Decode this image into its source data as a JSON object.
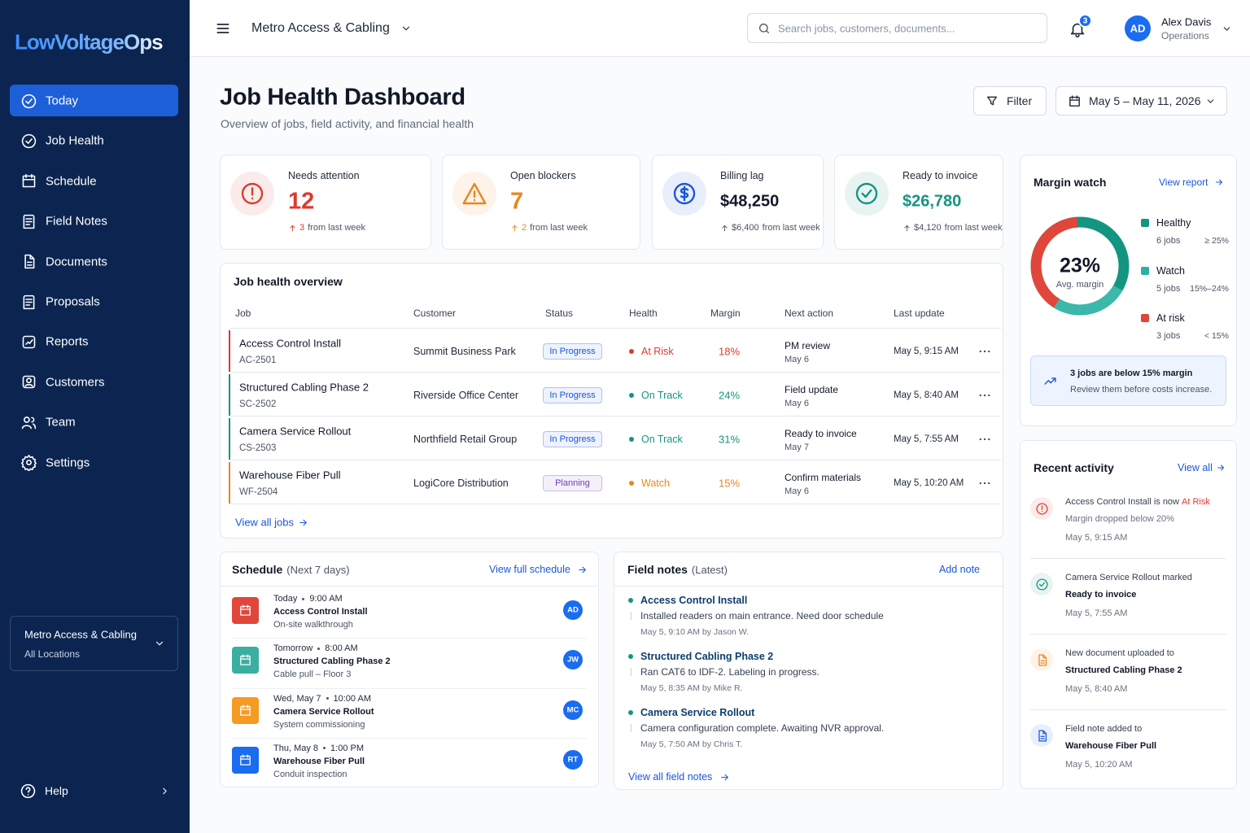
{
  "sidebar": {
    "brand": "LowVoltageOps",
    "nav": [
      "Today",
      "Job Health",
      "Schedule",
      "Field Notes",
      "Documents",
      "Proposals",
      "Reports",
      "Customers",
      "Team",
      "Settings"
    ],
    "org_switcher": {
      "name": "Metro Access & Cabling",
      "scope": "All Locations"
    },
    "help": "Help"
  },
  "topbar": {
    "org": "Metro Access & Cabling",
    "search_placeholder": "Search jobs, customers, documents...",
    "notifications": 3,
    "user": {
      "initials": "AD",
      "name": "Alex Davis",
      "role": "Operations"
    }
  },
  "header": {
    "title": "Job Health Dashboard",
    "subtitle": "Overview of jobs, field activity, and financial health",
    "filter": "Filter",
    "date_range": "May 5 – May 11, 2026"
  },
  "kpis": [
    {
      "label": "Needs attention",
      "value": "12",
      "delta": "3",
      "note": "from last week",
      "color": "#dc3b2f",
      "value_color": "#dc3b2f"
    },
    {
      "label": "Open blockers",
      "value": "7",
      "delta": "2",
      "note": "from last week",
      "color": "#e8871e",
      "value_color": "#e8871e"
    },
    {
      "label": "Billing lag",
      "value": "$48,250",
      "delta": "$6,400",
      "note": "from last week",
      "color": "#1a56db",
      "value_color": "#111827"
    },
    {
      "label": "Ready to invoice",
      "value": "$26,780",
      "delta": "$4,120",
      "note": "from last week",
      "color": "#14957f",
      "value_color": "#14957f"
    }
  ],
  "jobs_table": {
    "title": "Job health overview",
    "columns": [
      "Job",
      "Customer",
      "Status",
      "Health",
      "Margin",
      "Next action",
      "Last update"
    ],
    "rows": [
      {
        "job": "Access Control Install",
        "id": "AC-2501",
        "customer": "Summit Business Park",
        "status": "In Progress",
        "status_color": "#1a56db",
        "health": "At Risk",
        "health_color": "#dc3b2f",
        "margin": "18%",
        "next_action": "PM review",
        "next_date": "May 6",
        "last_update": "May 5, 9:15 AM"
      },
      {
        "job": "Structured Cabling Phase 2",
        "id": "SC-2502",
        "customer": "Riverside Office Center",
        "status": "In Progress",
        "status_color": "#1a56db",
        "health": "On Track",
        "health_color": "#14957f",
        "margin": "24%",
        "next_action": "Field update",
        "next_date": "May 6",
        "last_update": "May 5, 8:40 AM"
      },
      {
        "job": "Camera Service Rollout",
        "id": "CS-2503",
        "customer": "Northfield Retail Group",
        "status": "In Progress",
        "status_color": "#1a56db",
        "health": "On Track",
        "health_color": "#14957f",
        "margin": "31%",
        "next_action": "Ready to invoice",
        "next_date": "May 7",
        "last_update": "May 5, 7:55 AM"
      },
      {
        "job": "Warehouse Fiber Pull",
        "id": "WF-2504",
        "customer": "LogiCore Distribution",
        "status": "Planning",
        "status_color": "#6d3fc0",
        "health": "Watch",
        "health_color": "#e8871e",
        "margin": "15%",
        "next_action": "Confirm materials",
        "next_date": "May 6",
        "last_update": "May 5, 10:20 AM"
      }
    ],
    "footer_link": "View all jobs"
  },
  "margin_watch": {
    "title": "Margin watch",
    "link": "View report",
    "center_value": "23%",
    "center_label": "Avg. margin",
    "legend": [
      {
        "name": "Healthy",
        "count": "6 jobs",
        "range": "≥ 25%",
        "color": "#14957f"
      },
      {
        "name": "Watch",
        "count": "5 jobs",
        "range": "15%–24%",
        "color": "#2bb0a2"
      },
      {
        "name": "At risk",
        "count": "3 jobs",
        "range": "< 15%",
        "color": "#e0463a"
      }
    ],
    "callout": {
      "title": "3 jobs are below 15% margin",
      "text": "Review them before costs increase."
    }
  },
  "schedule": {
    "title": "Schedule",
    "subtitle": "(Next 7 days)",
    "link": "View full schedule",
    "items": [
      {
        "day": "Today",
        "time": "9:00 AM",
        "title": "Access Control Install",
        "detail": "On-site walkthrough",
        "assignee": "AD",
        "color": "#e0463a"
      },
      {
        "day": "Tomorrow",
        "time": "8:00 AM",
        "title": "Structured Cabling Phase 2",
        "detail": "Cable pull – Floor 3",
        "assignee": "JW",
        "color": "#3aaea0"
      },
      {
        "day": "Wed, May 7",
        "time": "10:00 AM",
        "title": "Camera Service Rollout",
        "detail": "System commissioning",
        "assignee": "MC",
        "color": "#f59a23"
      },
      {
        "day": "Thu, May 8",
        "time": "1:00 PM",
        "title": "Warehouse Fiber Pull",
        "detail": "Conduit inspection",
        "assignee": "RT",
        "color": "#1a6cf0"
      }
    ]
  },
  "field_notes": {
    "title": "Field notes",
    "subtitle": "(Latest)",
    "link": "Add note",
    "notes": [
      {
        "title": "Access Control Install",
        "text": "Installed readers on main entrance. Need door schedule",
        "meta": "May 5, 9:10 AM by Jason W."
      },
      {
        "title": "Structured Cabling Phase 2",
        "text": "Ran CAT6 to IDF-2. Labeling in progress.",
        "meta": "May 5, 8:35 AM by Mike R."
      },
      {
        "title": "Camera Service Rollout",
        "text": "Camera configuration complete. Awaiting NVR approval.",
        "meta": "May 5, 7:50 AM by Chris T."
      }
    ],
    "footer_link": "View all field notes"
  },
  "recent_activity": {
    "title": "Recent activity",
    "link": "View all",
    "items": [
      {
        "text": "Access Control Install is now",
        "status": "At Risk",
        "status_color": "#dc3b2f",
        "detail": "Margin dropped below 20%",
        "detail_weight": 400,
        "time": "May 5, 9:15 AM",
        "color": "#dc3b2f"
      },
      {
        "text": "Camera Service Rollout marked",
        "detail": "Ready to invoice",
        "detail_weight": 600,
        "time": "May 5, 7:55 AM",
        "color": "#14957f"
      },
      {
        "text": "New document uploaded to",
        "detail": "Structured Cabling Phase 2",
        "detail_weight": 600,
        "time": "May 5, 8:40 AM",
        "color": "#e8871e"
      },
      {
        "text": "Field note added to",
        "detail": "Warehouse Fiber Pull",
        "detail_weight": 600,
        "time": "May 5, 10:20 AM",
        "color": "#1a56db"
      }
    ]
  }
}
